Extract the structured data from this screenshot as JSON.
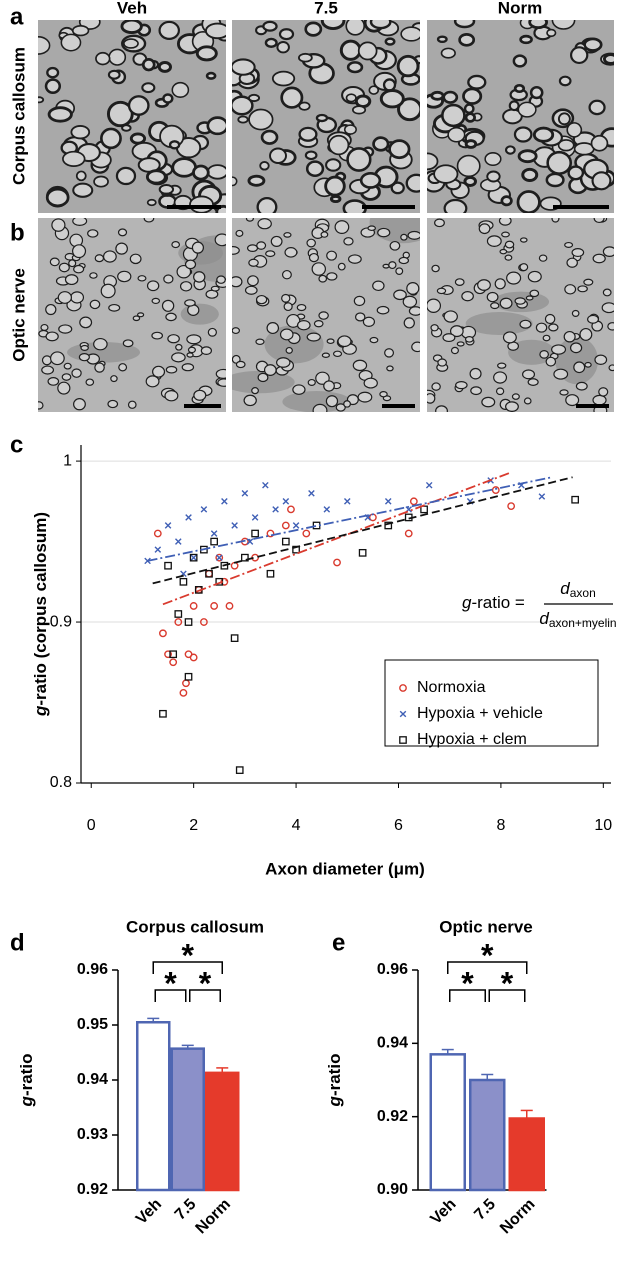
{
  "figure": {
    "columns": [
      "Veh",
      "7.5",
      "Norm"
    ],
    "rows": [
      {
        "panel": "a",
        "label": "Corpus callosum"
      },
      {
        "panel": "b",
        "label": "Optic nerve"
      }
    ]
  },
  "chart_data": [
    {
      "type": "scatter",
      "panel": "c",
      "x_label": "Axon diameter (μm)",
      "y_label_italic": "g",
      "y_label": "-ratio (corpus callosum)",
      "xlim": [
        -0.2,
        10.15
      ],
      "xticks": [
        0,
        2,
        4,
        6,
        8,
        10
      ],
      "ylim": [
        0.8,
        1.01
      ],
      "yticks": [
        0.8,
        0.9,
        1
      ],
      "grid": true,
      "legend": "lower right",
      "equation": {
        "lhs_italic": "g",
        "lhs": "-ratio =",
        "num": "d",
        "num_sub": "axon",
        "den": "d",
        "den_sub": "axon+myelin"
      },
      "series": [
        {
          "name": "Normoxia",
          "color": "#d93a2e",
          "marker": "circle",
          "fit_dash": "dashdot",
          "x": [
            1.3,
            1.4,
            1.5,
            1.6,
            1.7,
            1.8,
            1.85,
            1.9,
            2.0,
            2.0,
            2.1,
            2.2,
            2.3,
            2.4,
            2.5,
            2.6,
            2.8,
            3.0,
            3.2,
            3.5,
            3.8,
            4.2,
            4.8,
            5.5,
            6.2,
            6.3,
            7.9,
            8.2,
            3.9,
            2.7
          ],
          "values": [
            0.955,
            0.893,
            0.88,
            0.875,
            0.9,
            0.856,
            0.862,
            0.88,
            0.91,
            0.878,
            0.92,
            0.9,
            0.93,
            0.91,
            0.94,
            0.925,
            0.935,
            0.95,
            0.94,
            0.955,
            0.96,
            0.955,
            0.937,
            0.965,
            0.955,
            0.975,
            0.982,
            0.972,
            0.97,
            0.91
          ],
          "fit": {
            "x": [
              1.4,
              8.2
            ],
            "values": [
              0.911,
              0.993
            ]
          }
        },
        {
          "name": "Hypoxia + vehicle",
          "color": "#3f5fb5",
          "marker": "x",
          "fit_dash": "dashdot",
          "x": [
            1.1,
            1.3,
            1.5,
            1.7,
            1.9,
            2.0,
            2.2,
            2.4,
            2.6,
            2.8,
            3.0,
            3.2,
            3.4,
            3.6,
            3.8,
            4.0,
            4.3,
            4.6,
            5.0,
            5.4,
            5.8,
            6.2,
            6.6,
            7.4,
            7.8,
            8.4,
            8.8,
            2.5,
            3.1,
            1.8
          ],
          "values": [
            0.938,
            0.945,
            0.96,
            0.95,
            0.965,
            0.94,
            0.97,
            0.955,
            0.975,
            0.96,
            0.98,
            0.965,
            0.985,
            0.97,
            0.975,
            0.96,
            0.98,
            0.97,
            0.975,
            0.965,
            0.975,
            0.97,
            0.985,
            0.975,
            0.988,
            0.985,
            0.978,
            0.94,
            0.95,
            0.93
          ],
          "fit": {
            "x": [
              1.1,
              9.0
            ],
            "values": [
              0.938,
              0.99
            ]
          }
        },
        {
          "name": "Hypoxia + clem",
          "color": "#111111",
          "marker": "square",
          "fit_dash": "dashed",
          "x": [
            1.4,
            1.5,
            1.6,
            1.7,
            1.8,
            1.9,
            2.0,
            2.1,
            2.2,
            2.3,
            2.4,
            2.6,
            2.8,
            2.9,
            3.0,
            3.2,
            3.5,
            3.8,
            4.0,
            4.4,
            5.3,
            5.8,
            6.2,
            6.5,
            9.45,
            1.9,
            2.5
          ],
          "values": [
            0.843,
            0.935,
            0.88,
            0.905,
            0.925,
            0.866,
            0.94,
            0.92,
            0.945,
            0.93,
            0.95,
            0.935,
            0.89,
            0.808,
            0.94,
            0.955,
            0.93,
            0.95,
            0.945,
            0.96,
            0.943,
            0.96,
            0.965,
            0.97,
            0.976,
            0.9,
            0.925
          ],
          "fit": {
            "x": [
              1.2,
              9.4
            ],
            "values": [
              0.924,
              0.99
            ]
          }
        }
      ]
    },
    {
      "type": "bar",
      "panel": "d",
      "title": "Corpus callosum",
      "y_label_italic": "g",
      "y_label": "-ratio",
      "categories": [
        "Veh",
        "7.5",
        "Norm"
      ],
      "values": [
        0.9505,
        0.9457,
        0.9413
      ],
      "errors": [
        0.0007,
        0.0006,
        0.0009
      ],
      "colors": [
        "#ffffff",
        "#8b90c9",
        "#e53a2b"
      ],
      "edge_colors": [
        "#4f66b2",
        "#4f66b2",
        "#e53a2b"
      ],
      "ylim": [
        0.92,
        0.96
      ],
      "yticks": [
        0.92,
        0.93,
        0.94,
        0.95,
        0.96
      ],
      "significance": [
        {
          "from": 0,
          "to": 1,
          "label": "*"
        },
        {
          "from": 1,
          "to": 2,
          "label": "*"
        },
        {
          "from": 0,
          "to": 2,
          "label": "*"
        }
      ]
    },
    {
      "type": "bar",
      "panel": "e",
      "title": "Optic nerve",
      "y_label_italic": "g",
      "y_label": "-ratio",
      "categories": [
        "Veh",
        "7.5",
        "Norm"
      ],
      "values": [
        0.937,
        0.93,
        0.9195
      ],
      "errors": [
        0.0013,
        0.0015,
        0.0022
      ],
      "colors": [
        "#ffffff",
        "#8b90c9",
        "#e53a2b"
      ],
      "edge_colors": [
        "#4f66b2",
        "#4f66b2",
        "#e53a2b"
      ],
      "ylim": [
        0.9,
        0.96
      ],
      "yticks": [
        {
          "value": 0.9,
          "label": "0.90"
        },
        0.92,
        0.94,
        0.96
      ],
      "significance": [
        {
          "from": 0,
          "to": 1,
          "label": "*"
        },
        {
          "from": 1,
          "to": 2,
          "label": "*"
        },
        {
          "from": 0,
          "to": 2,
          "label": "*"
        }
      ]
    }
  ]
}
